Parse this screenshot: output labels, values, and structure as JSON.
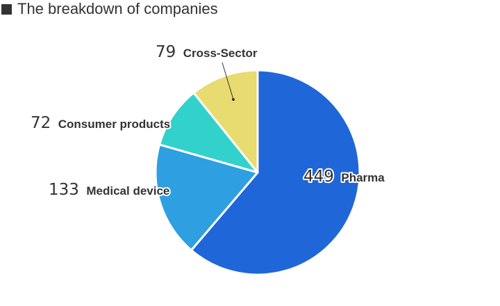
{
  "chart_data": {
    "type": "pie",
    "title": "The breakdown of companies",
    "slices": [
      {
        "label": "Pharma",
        "value": 449,
        "color": "#1f66d9"
      },
      {
        "label": "Medical device",
        "value": 133,
        "color": "#2e9fe0"
      },
      {
        "label": "Consumer products",
        "value": 72,
        "color": "#33d1cc"
      },
      {
        "label": "Cross-Sector",
        "value": 79,
        "color": "#e8db70"
      }
    ]
  }
}
